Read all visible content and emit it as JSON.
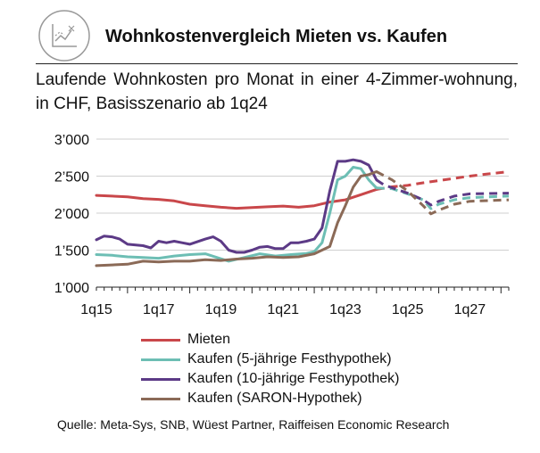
{
  "header": {
    "icon": "line-chart-icon",
    "title": "Wohnkostenvergleich Mieten vs. Kaufen",
    "subtitle": "Laufende Wohnkosten pro Monat in einer 4-Zimmer-wohnung, in CHF, Basisszenario ab 1q24"
  },
  "source": "Quelle: Meta-Sys, SNB, Wüest Partner, Raiffeisen Economic Research",
  "chart_data": {
    "type": "line",
    "title": "Wohnkostenvergleich Mieten vs. Kaufen",
    "subtitle": "Laufende Wohnkosten pro Monat in einer 4-Zimmer-wohnung, in CHF, Basisszenario ab 1q24",
    "x_ticks": [
      "1q15",
      "1q17",
      "1q19",
      "1q21",
      "1q23",
      "1q25",
      "1q27"
    ],
    "y_ticks": [
      "1’000",
      "1’500",
      "2’000",
      "2’500",
      "3’000"
    ],
    "ylim": [
      1000,
      3000
    ],
    "grid": true,
    "legend_position": "bottom",
    "forecast_start": "1q24",
    "forecast_style": "dashed",
    "series": [
      {
        "name": "Mieten",
        "color": "#c9474a",
        "points": [
          [
            "1q15",
            2240
          ],
          [
            "3q15",
            2230
          ],
          [
            "1q16",
            2220
          ],
          [
            "3q16",
            2195
          ],
          [
            "1q17",
            2185
          ],
          [
            "3q17",
            2165
          ],
          [
            "1q18",
            2120
          ],
          [
            "3q18",
            2100
          ],
          [
            "1q19",
            2080
          ],
          [
            "3q19",
            2065
          ],
          [
            "1q20",
            2075
          ],
          [
            "3q20",
            2085
          ],
          [
            "1q21",
            2095
          ],
          [
            "3q21",
            2080
          ],
          [
            "1q22",
            2100
          ],
          [
            "3q22",
            2150
          ],
          [
            "1q23",
            2180
          ],
          [
            "3q23",
            2250
          ],
          [
            "1q24",
            2320
          ],
          [
            "3q24",
            2355
          ],
          [
            "1q25",
            2375
          ],
          [
            "3q25",
            2410
          ],
          [
            "1q26",
            2440
          ],
          [
            "3q26",
            2470
          ],
          [
            "1q27",
            2500
          ],
          [
            "3q27",
            2525
          ],
          [
            "2q28",
            2560
          ]
        ]
      },
      {
        "name": "Kaufen (5-jährige Festhypothek)",
        "color": "#6dbeb4",
        "points": [
          [
            "1q15",
            1440
          ],
          [
            "3q15",
            1430
          ],
          [
            "1q16",
            1410
          ],
          [
            "3q16",
            1400
          ],
          [
            "1q17",
            1390
          ],
          [
            "3q17",
            1420
          ],
          [
            "1q18",
            1440
          ],
          [
            "3q18",
            1450
          ],
          [
            "2q19",
            1350
          ],
          [
            "4q19",
            1400
          ],
          [
            "2q20",
            1450
          ],
          [
            "4q20",
            1420
          ],
          [
            "2q21",
            1440
          ],
          [
            "4q21",
            1455
          ],
          [
            "1q22",
            1480
          ],
          [
            "2q22",
            1600
          ],
          [
            "3q22",
            2000
          ],
          [
            "4q22",
            2450
          ],
          [
            "1q23",
            2500
          ],
          [
            "2q23",
            2620
          ],
          [
            "3q23",
            2600
          ],
          [
            "4q23",
            2450
          ],
          [
            "1q24",
            2340
          ],
          [
            "3q24",
            2330
          ],
          [
            "1q25",
            2260
          ],
          [
            "3q25",
            2180
          ],
          [
            "4q25",
            2060
          ],
          [
            "1q26",
            2120
          ],
          [
            "3q26",
            2180
          ],
          [
            "1q27",
            2210
          ],
          [
            "2q28",
            2230
          ]
        ]
      },
      {
        "name": "Kaufen (10-jährige Festhypothek)",
        "color": "#5c3a86",
        "points": [
          [
            "1q15",
            1640
          ],
          [
            "2q15",
            1690
          ],
          [
            "3q15",
            1680
          ],
          [
            "4q15",
            1650
          ],
          [
            "1q16",
            1580
          ],
          [
            "3q16",
            1560
          ],
          [
            "4q16",
            1530
          ],
          [
            "1q17",
            1620
          ],
          [
            "2q17",
            1600
          ],
          [
            "3q17",
            1620
          ],
          [
            "4q17",
            1600
          ],
          [
            "1q18",
            1580
          ],
          [
            "3q18",
            1650
          ],
          [
            "4q18",
            1680
          ],
          [
            "1q19",
            1620
          ],
          [
            "2q19",
            1500
          ],
          [
            "3q19",
            1470
          ],
          [
            "4q19",
            1470
          ],
          [
            "1q20",
            1500
          ],
          [
            "2q20",
            1540
          ],
          [
            "3q20",
            1550
          ],
          [
            "4q20",
            1520
          ],
          [
            "1q21",
            1520
          ],
          [
            "2q21",
            1600
          ],
          [
            "3q21",
            1600
          ],
          [
            "4q21",
            1620
          ],
          [
            "1q22",
            1650
          ],
          [
            "2q22",
            1800
          ],
          [
            "3q22",
            2300
          ],
          [
            "4q22",
            2700
          ],
          [
            "1q23",
            2700
          ],
          [
            "2q23",
            2720
          ],
          [
            "3q23",
            2700
          ],
          [
            "4q23",
            2650
          ],
          [
            "1q24",
            2450
          ],
          [
            "2q24",
            2380
          ],
          [
            "1q25",
            2270
          ],
          [
            "3q25",
            2180
          ],
          [
            "4q25",
            2110
          ],
          [
            "1q26",
            2160
          ],
          [
            "3q26",
            2230
          ],
          [
            "1q27",
            2260
          ],
          [
            "2q28",
            2270
          ]
        ]
      },
      {
        "name": "Kaufen (SARON-Hypothek)",
        "color": "#8b6a57",
        "points": [
          [
            "1q15",
            1290
          ],
          [
            "3q15",
            1300
          ],
          [
            "1q16",
            1310
          ],
          [
            "3q16",
            1350
          ],
          [
            "1q17",
            1340
          ],
          [
            "3q17",
            1350
          ],
          [
            "1q18",
            1350
          ],
          [
            "3q18",
            1370
          ],
          [
            "1q19",
            1360
          ],
          [
            "3q19",
            1380
          ],
          [
            "1q20",
            1390
          ],
          [
            "3q20",
            1410
          ],
          [
            "1q21",
            1400
          ],
          [
            "3q21",
            1410
          ],
          [
            "1q22",
            1450
          ],
          [
            "2q22",
            1500
          ],
          [
            "3q22",
            1550
          ],
          [
            "4q22",
            1870
          ],
          [
            "1q23",
            2100
          ],
          [
            "2q23",
            2350
          ],
          [
            "3q23",
            2500
          ],
          [
            "4q23",
            2520
          ],
          [
            "1q24",
            2560
          ],
          [
            "3q24",
            2450
          ],
          [
            "1q25",
            2300
          ],
          [
            "3q25",
            2100
          ],
          [
            "4q25",
            1990
          ],
          [
            "1q26",
            2040
          ],
          [
            "3q26",
            2120
          ],
          [
            "1q27",
            2160
          ],
          [
            "2q28",
            2180
          ]
        ]
      }
    ]
  }
}
